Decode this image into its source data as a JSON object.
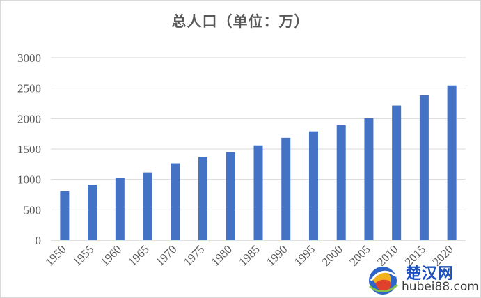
{
  "chart_data": {
    "type": "bar",
    "title": "总人口（单位：万）",
    "categories": [
      "1950",
      "1955",
      "1960",
      "1965",
      "1970",
      "1975",
      "1980",
      "1985",
      "1990",
      "1995",
      "2000",
      "2005",
      "2010",
      "2015",
      "2020"
    ],
    "values": [
      805,
      915,
      1020,
      1115,
      1265,
      1370,
      1445,
      1560,
      1685,
      1790,
      1890,
      2005,
      2215,
      2385,
      2545
    ],
    "y_ticks": [
      "0",
      "500",
      "1000",
      "1500",
      "2000",
      "2500",
      "3000"
    ],
    "ylim": [
      0,
      3000
    ],
    "grid": true,
    "bar_color": "#4472c4",
    "xlabel": "",
    "ylabel": ""
  },
  "watermark": {
    "name": "楚汉网",
    "domain": "hubei88.com"
  }
}
